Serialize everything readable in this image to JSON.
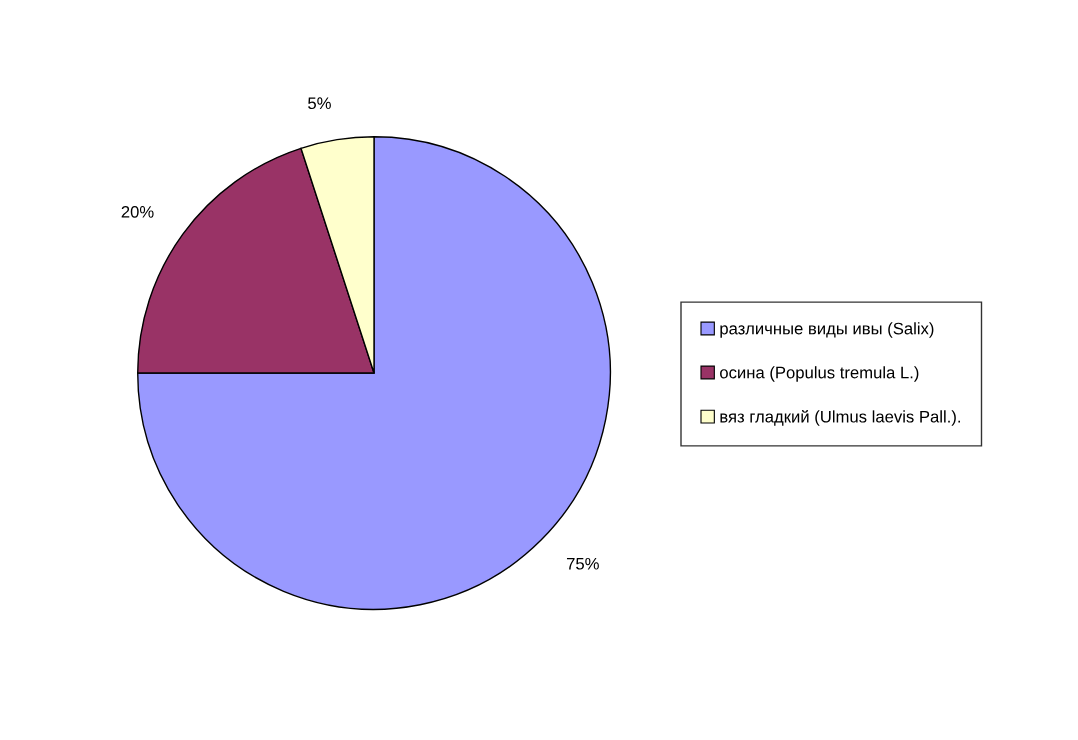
{
  "chart_data": {
    "type": "pie",
    "categories": [
      "различные виды ивы (Salix)",
      "осина (Populus tremula L.)",
      "вяз гладкий (Ulmus laevis Pall.)."
    ],
    "values": [
      75,
      20,
      5
    ],
    "colors": [
      "#9999ff",
      "#993366",
      "#ffffcc"
    ],
    "value_labels": [
      "75%",
      "20%",
      "5%"
    ],
    "legend": "right"
  }
}
